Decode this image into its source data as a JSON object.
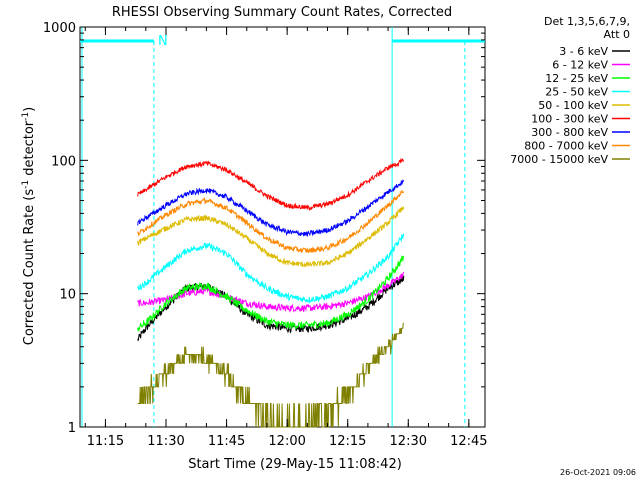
{
  "chart_data": {
    "type": "line",
    "title": "RHESSI Observing Summary Count Rates, Corrected",
    "xlabel": "Start Time (29-May-15 11:08:42)",
    "ylabel": "Corrected Count Rate (s",
    "ylabel_sup1": "-1",
    "ylabel_mid": " detector",
    "ylabel_sup2": "-1",
    "ylabel_end": ")",
    "y_scale": "log",
    "ylim": [
      1,
      1000
    ],
    "xlim": [
      "11:08:42",
      "12:49:00"
    ],
    "x_ticks": [
      "11:15",
      "11:30",
      "11:45",
      "12:00",
      "12:15",
      "12:30",
      "12:45"
    ],
    "y_ticks": [
      "1",
      "10",
      "100",
      "1000"
    ],
    "legend_header": [
      "Det 1,3,5,6,7,9,",
      "Att 0"
    ],
    "legend_placement": "right",
    "flag_label": "N",
    "timestamp": "26-Oct-2021 09:06",
    "night_intervals": [
      [
        "11:08:42",
        "11:27:00"
      ],
      [
        "12:26:00",
        "12:49:00"
      ]
    ],
    "saa_markers": [
      "11:27:00",
      "12:44:00"
    ],
    "series": [
      {
        "name": "3 - 6 keV",
        "color": "#000000",
        "x": [
          "11:23",
          "11:25",
          "11:30",
          "11:35",
          "11:40",
          "11:45",
          "11:50",
          "11:55",
          "12:00",
          "12:05",
          "12:10",
          "12:15",
          "12:20",
          "12:25",
          "12:29"
        ],
        "values": [
          4.5,
          5.5,
          8,
          11,
          11.5,
          9.5,
          7,
          5.8,
          5.5,
          5.5,
          5.8,
          6.5,
          8,
          11,
          13
        ]
      },
      {
        "name": "6 - 12 keV",
        "color": "#ff00ff",
        "x": [
          "11:23",
          "11:25",
          "11:30",
          "11:35",
          "11:40",
          "11:45",
          "11:50",
          "11:55",
          "12:00",
          "12:05",
          "12:10",
          "12:15",
          "12:20",
          "12:25",
          "12:29"
        ],
        "values": [
          8.5,
          8.5,
          9,
          10,
          10.5,
          9.5,
          8.5,
          8,
          7.8,
          7.8,
          8,
          8.5,
          9.5,
          11.5,
          14
        ]
      },
      {
        "name": "12 - 25 keV",
        "color": "#00ff00",
        "x": [
          "11:23",
          "11:25",
          "11:30",
          "11:35",
          "11:40",
          "11:45",
          "11:50",
          "11:55",
          "12:00",
          "12:05",
          "12:10",
          "12:15",
          "12:20",
          "12:25",
          "12:29"
        ],
        "values": [
          5.5,
          6,
          8.5,
          11,
          11.5,
          9.5,
          7.5,
          6.2,
          5.8,
          5.8,
          6,
          7,
          9,
          13,
          19
        ]
      },
      {
        "name": "25 - 50 keV",
        "color": "#00ffff",
        "x": [
          "11:23",
          "11:25",
          "11:30",
          "11:35",
          "11:40",
          "11:45",
          "11:50",
          "11:55",
          "12:00",
          "12:05",
          "12:10",
          "12:15",
          "12:20",
          "12:25",
          "12:29"
        ],
        "values": [
          11,
          12,
          16,
          21,
          23,
          20,
          14,
          11,
          9.5,
          9,
          9.5,
          11,
          14,
          19,
          28
        ]
      },
      {
        "name": "50 - 100 keV",
        "color": "#ddbb00",
        "x": [
          "11:23",
          "11:25",
          "11:30",
          "11:35",
          "11:40",
          "11:45",
          "11:50",
          "11:55",
          "12:00",
          "12:05",
          "12:10",
          "12:15",
          "12:20",
          "12:25",
          "12:29"
        ],
        "values": [
          24,
          26,
          31,
          36,
          37,
          33,
          26,
          20,
          17,
          16.5,
          17,
          20,
          26,
          34,
          45
        ]
      },
      {
        "name": "100 - 300 keV",
        "color": "#ff0000",
        "x": [
          "11:23",
          "11:25",
          "11:30",
          "11:35",
          "11:40",
          "11:45",
          "11:50",
          "11:55",
          "12:00",
          "12:05",
          "12:10",
          "12:15",
          "12:20",
          "12:25",
          "12:29"
        ],
        "values": [
          55,
          60,
          75,
          90,
          95,
          85,
          68,
          54,
          46,
          44,
          47,
          55,
          70,
          88,
          100
        ]
      },
      {
        "name": "300 - 800 keV",
        "color": "#0000ff",
        "x": [
          "11:23",
          "11:25",
          "11:30",
          "11:35",
          "11:40",
          "11:45",
          "11:50",
          "11:55",
          "12:00",
          "12:05",
          "12:10",
          "12:15",
          "12:20",
          "12:25",
          "12:29"
        ],
        "values": [
          34,
          37,
          46,
          56,
          60,
          53,
          42,
          33,
          29,
          28,
          30,
          35,
          45,
          58,
          70
        ]
      },
      {
        "name": "800 - 7000 keV",
        "color": "#ff8800",
        "x": [
          "11:23",
          "11:25",
          "11:30",
          "11:35",
          "11:40",
          "11:45",
          "11:50",
          "11:55",
          "12:00",
          "12:05",
          "12:10",
          "12:15",
          "12:20",
          "12:25",
          "12:29"
        ],
        "values": [
          28,
          31,
          39,
          47,
          50,
          44,
          34,
          26,
          22,
          21,
          22,
          26,
          34,
          46,
          60
        ]
      },
      {
        "name": "7000 - 15000 keV",
        "color": "#808000",
        "x": [
          "11:23",
          "11:25",
          "11:30",
          "11:35",
          "11:40",
          "11:45",
          "11:50",
          "11:55",
          "12:00",
          "12:05",
          "12:10",
          "12:15",
          "12:20",
          "12:25",
          "12:29"
        ],
        "values": [
          1.5,
          1.8,
          2.6,
          3.5,
          3.3,
          2.5,
          1.6,
          1.2,
          1.1,
          1.1,
          1.3,
          1.8,
          2.8,
          4,
          6
        ]
      }
    ]
  }
}
